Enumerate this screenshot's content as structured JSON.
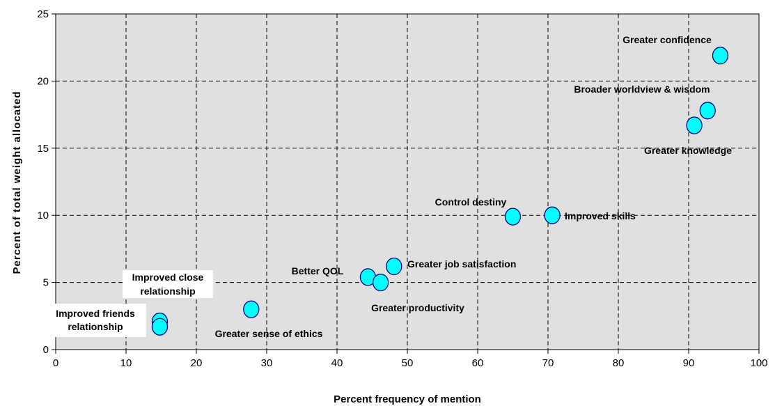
{
  "chart_data": {
    "type": "scatter",
    "title": "",
    "xlabel": "Percent frequency of mention",
    "ylabel": "Percent of total weight allocated",
    "xlim": [
      0,
      100
    ],
    "ylim": [
      0,
      25
    ],
    "xticks": [
      "0",
      "10",
      "20",
      "30",
      "40",
      "50",
      "60",
      "70",
      "80",
      "90",
      "100"
    ],
    "yticks": [
      "0",
      "5",
      "10",
      "15",
      "20",
      "25"
    ],
    "grid": true,
    "legend": "none",
    "colors": {
      "marker_fill": "#00FFFF",
      "marker_stroke": "#000080",
      "plot_background": "#E0E0E0"
    },
    "points": [
      {
        "x": 94.5,
        "y": 21.9
      },
      {
        "x": 92.7,
        "y": 17.8
      },
      {
        "x": 90.8,
        "y": 16.7
      },
      {
        "x": 70.6,
        "y": 10.0
      },
      {
        "x": 65.0,
        "y": 9.9
      },
      {
        "x": 48.1,
        "y": 6.2
      },
      {
        "x": 44.4,
        "y": 5.4
      },
      {
        "x": 46.2,
        "y": 5.0
      },
      {
        "x": 27.8,
        "y": 3.0
      },
      {
        "x": 14.8,
        "y": 2.1
      },
      {
        "x": 14.8,
        "y": 1.7
      }
    ],
    "annotations": [
      "Greater confidence",
      "Broader worldview & wisdom",
      "Greater knowledge",
      "Improved skills",
      "Control destiny",
      "Greater job satisfaction",
      "Better QOL",
      "Greater productivity",
      "Greater sense of ethics",
      "Improved close",
      "relationship",
      "Improved friends",
      "relationship"
    ]
  }
}
